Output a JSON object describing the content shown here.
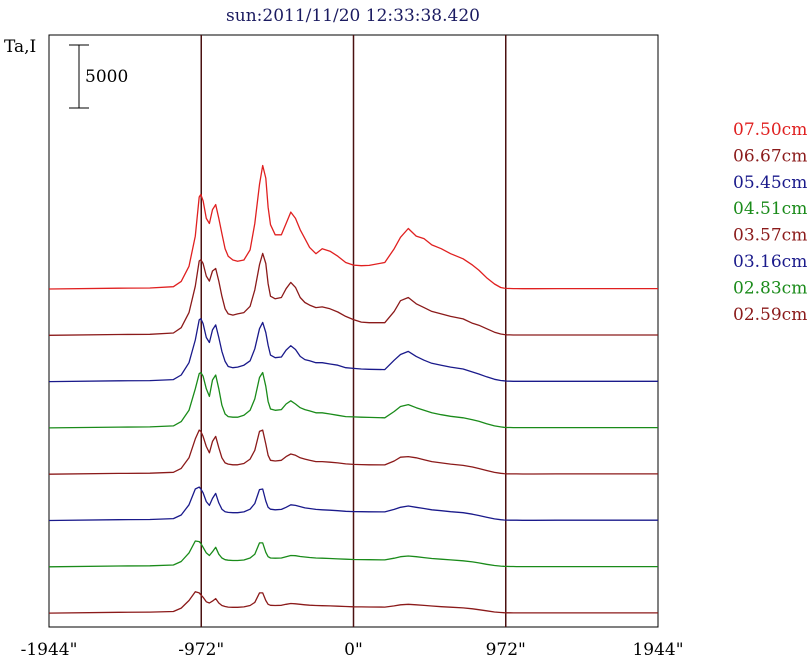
{
  "title": "sun:2011/11/20 12:33:38.420",
  "ylabel": "Ta,I",
  "scale_bar": {
    "label": "5000",
    "value": 5000
  },
  "colors": {
    "axis": "#000000",
    "vline": "#4a1010",
    "title": "#1a1a60"
  },
  "chart_data": {
    "type": "line",
    "title": "sun:2011/11/20 12:33:38.420",
    "ylabel": "Ta,I",
    "xlabel": "",
    "xlim": [
      -1944,
      1944
    ],
    "xticks": [
      {
        "value": -1944,
        "label": "-1944\""
      },
      {
        "value": -972,
        "label": "-972\""
      },
      {
        "value": 0,
        "label": "0\""
      },
      {
        "value": 972,
        "label": "972\""
      },
      {
        "value": 1944,
        "label": "1944\""
      }
    ],
    "vlines": [
      -972,
      0,
      972
    ],
    "stacked_offsets": true,
    "x": [
      -1944,
      -1500,
      -1300,
      -1150,
      -1100,
      -1050,
      -1010,
      -985,
      -975,
      -960,
      -940,
      -920,
      -900,
      -880,
      -860,
      -840,
      -820,
      -800,
      -770,
      -740,
      -700,
      -660,
      -630,
      -600,
      -580,
      -560,
      -545,
      -530,
      -500,
      -460,
      -430,
      -400,
      -370,
      -340,
      -310,
      -280,
      -240,
      -200,
      -150,
      -100,
      -50,
      0,
      50,
      100,
      200,
      260,
      300,
      350,
      400,
      450,
      500,
      560,
      620,
      700,
      760,
      800,
      850,
      900,
      940,
      960,
      980,
      1000,
      1020,
      1040,
      1080,
      1150,
      1300,
      1500,
      1700,
      1944
    ],
    "series": [
      {
        "name": "07.50cm",
        "color": "#e02020",
        "values": [
          0,
          60,
          80,
          180,
          600,
          1800,
          4200,
          7300,
          7500,
          7000,
          5600,
          5200,
          6300,
          6700,
          5600,
          4400,
          3200,
          2600,
          2300,
          2200,
          2300,
          3100,
          5200,
          8300,
          9800,
          8800,
          6500,
          5100,
          4300,
          4300,
          5200,
          6100,
          5600,
          4700,
          4000,
          3300,
          2800,
          3200,
          3000,
          2600,
          2100,
          1900,
          1850,
          1870,
          2100,
          3200,
          4100,
          4800,
          4200,
          4000,
          3500,
          3200,
          2800,
          2400,
          1900,
          1500,
          900,
          400,
          120,
          70,
          50,
          40,
          35,
          30,
          25,
          25,
          30,
          30,
          30,
          30
        ]
      },
      {
        "name": "06.67cm",
        "color": "#8b1a1a",
        "values": [
          0,
          60,
          80,
          180,
          600,
          1800,
          3900,
          5900,
          6000,
          5700,
          4700,
          4300,
          5100,
          5300,
          4300,
          3100,
          2100,
          1700,
          1600,
          1700,
          1800,
          2300,
          3600,
          5600,
          6500,
          5700,
          4100,
          3100,
          2900,
          3000,
          3700,
          4200,
          3800,
          3000,
          2600,
          2400,
          2200,
          2250,
          2100,
          1850,
          1500,
          1250,
          1050,
          1000,
          1000,
          1900,
          2750,
          3000,
          2500,
          2200,
          1900,
          1700,
          1500,
          1300,
          950,
          800,
          520,
          250,
          100,
          60,
          40,
          30,
          25,
          20,
          20,
          20,
          25,
          25,
          25,
          25
        ]
      },
      {
        "name": "05.45cm",
        "color": "#1a1a8b",
        "values": [
          0,
          60,
          80,
          160,
          520,
          1500,
          3300,
          4900,
          5000,
          4600,
          3500,
          3100,
          4100,
          4500,
          3500,
          2400,
          1600,
          1200,
          1100,
          1150,
          1300,
          1650,
          2600,
          4200,
          4700,
          3900,
          2900,
          2100,
          1900,
          1950,
          2500,
          2850,
          2550,
          2000,
          1750,
          1650,
          1500,
          1500,
          1400,
          1300,
          1100,
          1050,
          1000,
          980,
          950,
          1700,
          2150,
          2400,
          2000,
          1700,
          1450,
          1300,
          1150,
          1000,
          760,
          600,
          380,
          180,
          90,
          60,
          40,
          30,
          25,
          20,
          20,
          20,
          25,
          25,
          25,
          25
        ]
      },
      {
        "name": "04.51cm",
        "color": "#1a8b1a",
        "values": [
          0,
          60,
          80,
          160,
          500,
          1400,
          3100,
          4300,
          4400,
          4100,
          3100,
          2500,
          3800,
          4200,
          3100,
          1800,
          1100,
          900,
          850,
          850,
          1000,
          1400,
          2300,
          4000,
          4400,
          3300,
          2100,
          1500,
          1400,
          1450,
          1900,
          2150,
          1900,
          1600,
          1450,
          1350,
          1200,
          1200,
          1100,
          1000,
          900,
          870,
          850,
          830,
          800,
          1300,
          1700,
          1850,
          1600,
          1400,
          1200,
          1050,
          920,
          800,
          650,
          520,
          330,
          160,
          80,
          50,
          35,
          28,
          24,
          20,
          20,
          20,
          22,
          22,
          22,
          22
        ]
      },
      {
        "name": "03.57cm",
        "color": "#8b1a1a",
        "values": [
          0,
          60,
          80,
          150,
          460,
          1300,
          2800,
          3500,
          3400,
          3000,
          2200,
          1700,
          2600,
          3000,
          2100,
          1300,
          900,
          800,
          750,
          750,
          850,
          1200,
          1900,
          3400,
          3500,
          2400,
          1500,
          1100,
          1050,
          1100,
          1400,
          1600,
          1500,
          1300,
          1200,
          1100,
          1000,
          1000,
          950,
          900,
          820,
          780,
          760,
          750,
          740,
          1050,
          1350,
          1400,
          1300,
          1150,
          1000,
          900,
          800,
          700,
          570,
          450,
          290,
          140,
          70,
          45,
          32,
          26,
          22,
          20,
          18,
          18,
          20,
          20,
          20,
          20
        ]
      },
      {
        "name": "03.16cm",
        "color": "#1a1a8b",
        "values": [
          0,
          60,
          80,
          150,
          440,
          1250,
          2500,
          2650,
          2500,
          2200,
          1500,
          1200,
          1750,
          2150,
          1400,
          900,
          700,
          640,
          620,
          620,
          680,
          900,
          1350,
          2450,
          2500,
          1550,
          1050,
          900,
          850,
          880,
          1050,
          1250,
          1200,
          1100,
          1000,
          950,
          880,
          850,
          820,
          780,
          730,
          710,
          700,
          690,
          680,
          880,
          1050,
          1150,
          1050,
          950,
          850,
          780,
          700,
          620,
          500,
          400,
          260,
          130,
          65,
          42,
          30,
          25,
          22,
          20,
          18,
          18,
          20,
          20,
          20,
          20
        ]
      },
      {
        "name": "02.83cm",
        "color": "#1a8b1a",
        "values": [
          0,
          60,
          80,
          140,
          420,
          1100,
          2050,
          2000,
          1850,
          1550,
          1100,
          900,
          1200,
          1550,
          1000,
          700,
          560,
          520,
          500,
          500,
          540,
          700,
          1000,
          1900,
          1900,
          1150,
          800,
          700,
          680,
          700,
          800,
          900,
          880,
          820,
          780,
          740,
          700,
          680,
          660,
          630,
          600,
          580,
          570,
          560,
          550,
          680,
          800,
          860,
          800,
          730,
          660,
          600,
          550,
          480,
          390,
          310,
          200,
          100,
          55,
          38,
          28,
          23,
          20,
          18,
          17,
          17,
          18,
          18,
          18,
          18
        ]
      },
      {
        "name": "02.59cm",
        "color": "#8b1a1a",
        "values": [
          0,
          60,
          80,
          130,
          400,
          1000,
          1700,
          1600,
          1450,
          1250,
          900,
          800,
          950,
          1150,
          800,
          600,
          520,
          480,
          460,
          460,
          490,
          600,
          850,
          1600,
          1600,
          1000,
          700,
          620,
          600,
          620,
          700,
          760,
          740,
          700,
          660,
          630,
          600,
          590,
          570,
          550,
          520,
          500,
          490,
          485,
          480,
          570,
          660,
          700,
          660,
          610,
          560,
          510,
          470,
          410,
          340,
          270,
          180,
          90,
          50,
          34,
          26,
          21,
          19,
          17,
          16,
          16,
          17,
          17,
          17,
          17
        ]
      }
    ]
  }
}
